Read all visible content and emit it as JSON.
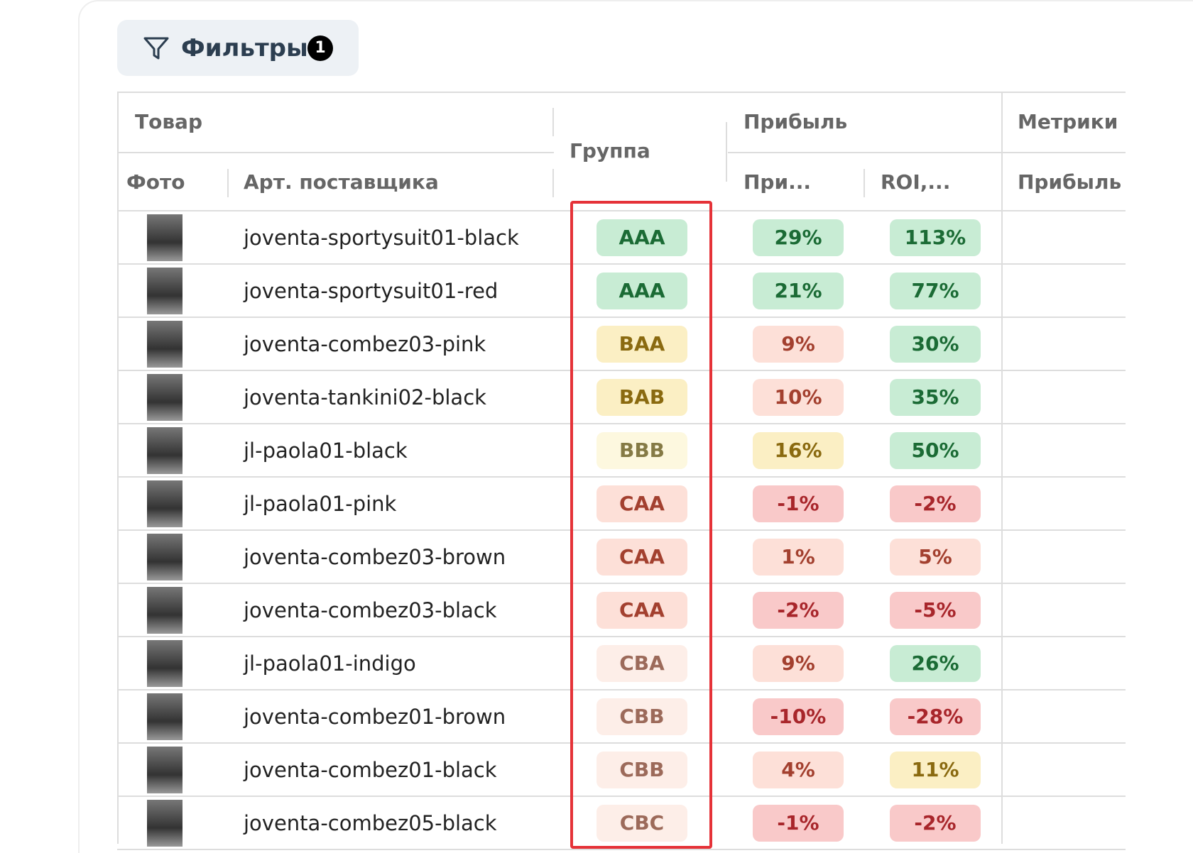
{
  "filter_button": {
    "label": "Фильтры",
    "count": "1"
  },
  "table": {
    "group_headers": [
      "Товар",
      "Группа",
      "Прибыль",
      "Метрики"
    ],
    "sub_headers": [
      "Фото",
      "Арт. поставщика",
      "При...",
      "ROI,...",
      "Прибыль"
    ],
    "rows": [
      {
        "article": "joventa-sportysuit01-black",
        "group": "AAA",
        "group_color": "#c8ecd4",
        "profit": "29%",
        "profit_color": "#c8ecd4",
        "roi": "113%",
        "roi_color": "#c8ecd4"
      },
      {
        "article": "joventa-sportysuit01-red",
        "group": "AAA",
        "group_color": "#c8ecd4",
        "profit": "21%",
        "profit_color": "#c8ecd4",
        "roi": "77%",
        "roi_color": "#c8ecd4"
      },
      {
        "article": "joventa-combez03-pink",
        "group": "BAA",
        "group_color": "#fbefc4",
        "profit": "9%",
        "profit_color": "#fde0d8",
        "roi": "30%",
        "roi_color": "#c8ecd4"
      },
      {
        "article": "joventa-tankini02-black",
        "group": "BAB",
        "group_color": "#fbefc4",
        "profit": "10%",
        "profit_color": "#fde0d8",
        "roi": "35%",
        "roi_color": "#c8ecd4"
      },
      {
        "article": "jl-paola01-black",
        "group": "BBB",
        "group_color": "#fdf8df",
        "profit": "16%",
        "profit_color": "#fbefc4",
        "roi": "50%",
        "roi_color": "#c8ecd4"
      },
      {
        "article": "jl-paola01-pink",
        "group": "CAA",
        "group_color": "#fde0d8",
        "profit": "-1%",
        "profit_color": "#f9c9c9",
        "roi": "-2%",
        "roi_color": "#f9c9c9"
      },
      {
        "article": "joventa-combez03-brown",
        "group": "CAA",
        "group_color": "#fde0d8",
        "profit": "1%",
        "profit_color": "#fde0d8",
        "roi": "5%",
        "roi_color": "#fde0d8"
      },
      {
        "article": "joventa-combez03-black",
        "group": "CAA",
        "group_color": "#fde0d8",
        "profit": "-2%",
        "profit_color": "#f9c9c9",
        "roi": "-5%",
        "roi_color": "#f9c9c9"
      },
      {
        "article": "jl-paola01-indigo",
        "group": "CBA",
        "group_color": "#fdeee8",
        "profit": "9%",
        "profit_color": "#fde0d8",
        "roi": "26%",
        "roi_color": "#c8ecd4"
      },
      {
        "article": "joventa-combez01-brown",
        "group": "CBB",
        "group_color": "#fdeee8",
        "profit": "-10%",
        "profit_color": "#f9c9c9",
        "roi": "-28%",
        "roi_color": "#f9c9c9"
      },
      {
        "article": "joventa-combez01-black",
        "group": "CBB",
        "group_color": "#fdeee8",
        "profit": "4%",
        "profit_color": "#fde0d8",
        "roi": "11%",
        "roi_color": "#fbefc4"
      },
      {
        "article": "joventa-combez05-black",
        "group": "CBC",
        "group_color": "#fdeee8",
        "profit": "-1%",
        "profit_color": "#f9c9c9",
        "roi": "-2%",
        "roi_color": "#f9c9c9"
      }
    ]
  }
}
